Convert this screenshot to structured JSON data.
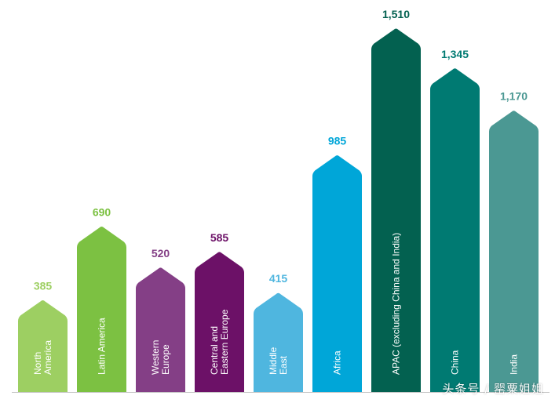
{
  "chart_data": {
    "type": "bar",
    "categories": [
      [
        "North",
        "America"
      ],
      [
        "Latin America"
      ],
      [
        "Western",
        "Europe"
      ],
      [
        "Central and",
        "Eastern Europe"
      ],
      [
        "Middle",
        "East"
      ],
      [
        "Africa"
      ],
      [
        "APAC (excluding China and India)"
      ],
      [
        "China"
      ],
      [
        "India"
      ]
    ],
    "values": [
      385,
      690,
      520,
      585,
      415,
      985,
      1510,
      1345,
      1170
    ],
    "value_labels": [
      "385",
      "690",
      "520",
      "585",
      "415",
      "985",
      "1,510",
      "1,345",
      "1,170"
    ],
    "colors": [
      "#9dcf62",
      "#7cc142",
      "#843f86",
      "#6c1167",
      "#4fb6df",
      "#00a6d8",
      "#036150",
      "#007a72",
      "#4b9893"
    ],
    "label_colors": [
      "#9dcf62",
      "#7cc142",
      "#843f86",
      "#6c1167",
      "#4fb6df",
      "#00a6d8",
      "#036150",
      "#007a72",
      "#4b9893"
    ],
    "ylim": [
      0,
      1510
    ],
    "grid": false,
    "baseline_color": "#c8c8c8"
  },
  "watermark": "头条号 / 罂粟姐姐"
}
